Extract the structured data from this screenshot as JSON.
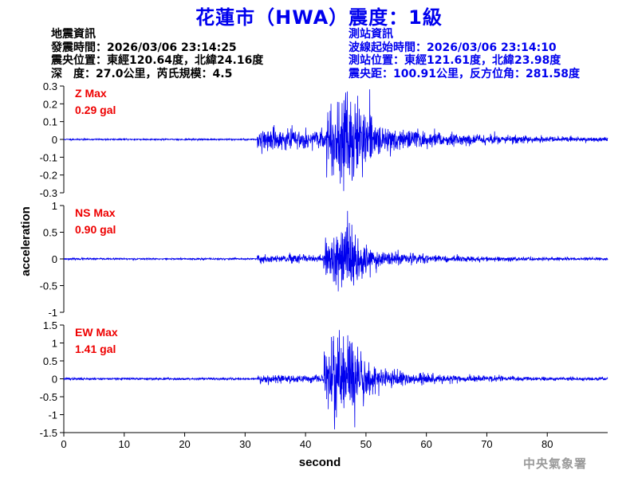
{
  "title": "花蓮市（HWA）震度：1級",
  "earthquake_info": {
    "heading": "地震資訊",
    "origin_time": "發震時間：2026/03/06 23:14:25",
    "epicenter": "震央位置：東經120.64度，北緯24.16度",
    "depth_magnitude": "深　度：27.0公里，芮氏規模：4.5"
  },
  "station_info": {
    "heading": "測站資訊",
    "wave_start": "波線起始時間：2026/03/06 23:14:10",
    "station_location": "測站位置：東經121.61度，北緯23.98度",
    "distance_azimuth": "震央距：100.91公里，反方位角：281.58度"
  },
  "agency": "中央氣象署",
  "chart_data": {
    "type": "line",
    "xlabel": "second",
    "ylabel": "acceleration",
    "xlim": [
      0,
      90
    ],
    "xticks": [
      0,
      10,
      20,
      30,
      40,
      50,
      60,
      70,
      80
    ],
    "colors": {
      "trace": "#0000ee",
      "max_label": "#ee0000",
      "axis": "#000000"
    },
    "panels": [
      {
        "component": "Z",
        "max_label": "Z Max",
        "max_value": "0.29 gal",
        "peak": 0.29,
        "ylim": [
          -0.3,
          0.3
        ],
        "yticks": [
          0.3,
          0.2,
          0.1,
          0,
          -0.1,
          -0.2,
          -0.3
        ],
        "ytick_labels": [
          "0.3",
          "0.2",
          "0.1",
          "0",
          "-0.1",
          "-0.2",
          "-0.3"
        ],
        "noise": 0.004,
        "p_arrival": 32,
        "peak_time": 47,
        "p_amp": 0.06,
        "s_amp": 0.17,
        "decay": 12,
        "seed": 11
      },
      {
        "component": "NS",
        "max_label": "NS Max",
        "max_value": "0.90 gal",
        "peak": 0.9,
        "ylim": [
          -1,
          1
        ],
        "yticks": [
          1,
          0.5,
          0,
          -0.5,
          -1
        ],
        "ytick_labels": [
          "1",
          "0.5",
          "0",
          "-0.5",
          "-1"
        ],
        "noise": 0.015,
        "p_arrival": 32,
        "peak_time": 46.5,
        "p_amp": 0.07,
        "s_amp": 0.42,
        "decay": 10,
        "seed": 23
      },
      {
        "component": "EW",
        "max_label": "EW Max",
        "max_value": "1.41 gal",
        "peak": 1.41,
        "ylim": [
          -1.5,
          1.5
        ],
        "yticks": [
          1.5,
          1,
          0.5,
          0,
          -0.5,
          -1,
          -1.5
        ],
        "ytick_labels": [
          "1.5",
          "1",
          "0.5",
          "0",
          "-0.5",
          "-1",
          "-1.5"
        ],
        "noise": 0.015,
        "p_arrival": 32,
        "peak_time": 46.5,
        "p_amp": 0.05,
        "s_amp": 0.5,
        "decay": 9,
        "seed": 37
      }
    ]
  }
}
